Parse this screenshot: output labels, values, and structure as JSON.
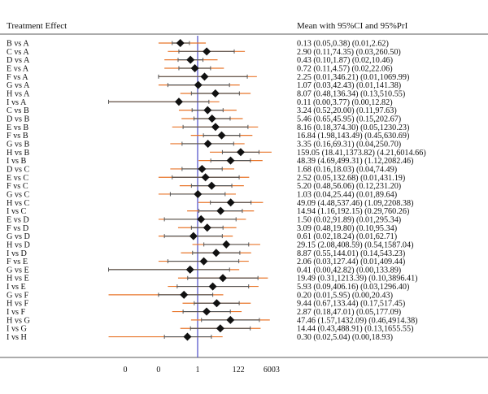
{
  "header": {
    "left": "Treatment Effect",
    "right": "Mean with 95%CI and 95%PrI"
  },
  "chart_data": {
    "type": "forest",
    "title": "",
    "xlabel": "",
    "ylabel": "",
    "x_scale": "log",
    "reference_line": 1,
    "x_tick_labels": [
      "0",
      "0",
      "1",
      "122",
      "6003"
    ],
    "x_ticks": [
      0.0002,
      0.01,
      1,
      122,
      6003
    ],
    "xlim": [
      2e-05,
      150000
    ],
    "colors": {
      "prediction_interval": "#e8762b",
      "confidence_interval": "#555555",
      "marker": "#111111",
      "reference_line": "#4a4ac8"
    },
    "rows": [
      {
        "label": "B vs A",
        "mean": 0.13,
        "ci": [
          0.05,
          0.38
        ],
        "pri": [
          0.01,
          2.62
        ],
        "text": "0.13 (0.05,0.38) (0.01,2.62)"
      },
      {
        "label": "C vs A",
        "mean": 2.9,
        "ci": [
          0.11,
          74.35
        ],
        "pri": [
          0.03,
          260.5
        ],
        "text": "2.90 (0.11,74.35) (0.03,260.50)"
      },
      {
        "label": "D vs A",
        "mean": 0.43,
        "ci": [
          0.1,
          1.87
        ],
        "pri": [
          0.02,
          10.46
        ],
        "text": "0.43 (0.10,1.87) (0.02,10.46)"
      },
      {
        "label": "E vs A",
        "mean": 0.72,
        "ci": [
          0.11,
          4.57
        ],
        "pri": [
          0.02,
          22.06
        ],
        "text": "0.72 (0.11,4.57) (0.02,22.06)"
      },
      {
        "label": "F vs A",
        "mean": 2.25,
        "ci": [
          0.01,
          346.21
        ],
        "pri": [
          0.01,
          1069.99
        ],
        "text": "2.25 (0.01,346.21) (0.01,1069.99)"
      },
      {
        "label": "G vs A",
        "mean": 1.07,
        "ci": [
          0.03,
          42.43
        ],
        "pri": [
          0.01,
          141.38
        ],
        "text": "1.07 (0.03,42.43) (0.01,141.38)"
      },
      {
        "label": "H vs A",
        "mean": 8.07,
        "ci": [
          0.48,
          136.34
        ],
        "pri": [
          0.13,
          510.55
        ],
        "text": "8.07 (0.48,136.34) (0.13,510.55)"
      },
      {
        "label": "I vs A",
        "mean": 0.11,
        "ci": [
          0.0,
          3.77
        ],
        "pri": [
          0.0,
          12.82
        ],
        "text": "0.11 (0.00,3.77) (0.00,12.82)"
      },
      {
        "label": "C vs B",
        "mean": 3.24,
        "ci": [
          0.52,
          20.0
        ],
        "pri": [
          0.11,
          97.63
        ],
        "text": "3.24 (0.52,20.00) (0.11,97.63)"
      },
      {
        "label": "D vs B",
        "mean": 5.46,
        "ci": [
          0.65,
          45.95
        ],
        "pri": [
          0.15,
          202.67
        ],
        "text": "5.46 (0.65,45.95) (0.15,202.67)"
      },
      {
        "label": "E vs B",
        "mean": 8.16,
        "ci": [
          0.18,
          374.3
        ],
        "pri": [
          0.05,
          1230.23
        ],
        "text": "8.16 (0.18,374.30) (0.05,1230.23)"
      },
      {
        "label": "F vs B",
        "mean": 16.84,
        "ci": [
          1.98,
          143.49
        ],
        "pri": [
          0.45,
          630.69
        ],
        "text": "16.84 (1.98,143.49) (0.45,630.69)"
      },
      {
        "label": "G vs B",
        "mean": 3.35,
        "ci": [
          0.16,
          69.31
        ],
        "pri": [
          0.04,
          250.7
        ],
        "text": "3.35 (0.16,69.31) (0.04,250.70)"
      },
      {
        "label": "H vs B",
        "mean": 159.05,
        "ci": [
          18.41,
          1373.82
        ],
        "pri": [
          4.21,
          6014.66
        ],
        "text": "159.05 (18.41,1373.82) (4.21,6014.66)"
      },
      {
        "label": "I vs B",
        "mean": 48.39,
        "ci": [
          4.69,
          499.31
        ],
        "pri": [
          1.12,
          2082.46
        ],
        "text": "48.39 (4.69,499.31) (1.12,2082.46)"
      },
      {
        "label": "D vs C",
        "mean": 1.68,
        "ci": [
          0.16,
          18.03
        ],
        "pri": [
          0.04,
          74.49
        ],
        "text": "1.68 (0.16,18.03) (0.04,74.49)"
      },
      {
        "label": "E vs C",
        "mean": 2.52,
        "ci": [
          0.05,
          132.68
        ],
        "pri": [
          0.01,
          431.19
        ],
        "text": "2.52 (0.05,132.68) (0.01,431.19)"
      },
      {
        "label": "F vs C",
        "mean": 5.2,
        "ci": [
          0.48,
          56.06
        ],
        "pri": [
          0.12,
          231.2
        ],
        "text": "5.20 (0.48,56.06) (0.12,231.20)"
      },
      {
        "label": "G vs C",
        "mean": 1.03,
        "ci": [
          0.04,
          25.44
        ],
        "pri": [
          0.01,
          89.64
        ],
        "text": "1.03 (0.04,25.44) (0.01,89.64)"
      },
      {
        "label": "H vs C",
        "mean": 49.09,
        "ci": [
          4.48,
          537.46
        ],
        "pri": [
          1.09,
          2208.38
        ],
        "text": "49.09 (4.48,537.46) (1.09,2208.38)"
      },
      {
        "label": "I vs C",
        "mean": 14.94,
        "ci": [
          1.16,
          192.15
        ],
        "pri": [
          0.29,
          760.26
        ],
        "text": "14.94 (1.16,192.15) (0.29,760.26)"
      },
      {
        "label": "E vs D",
        "mean": 1.5,
        "ci": [
          0.02,
          91.89
        ],
        "pri": [
          0.01,
          295.34
        ],
        "text": "1.50 (0.02,91.89) (0.01,295.34)"
      },
      {
        "label": "F vs D",
        "mean": 3.09,
        "ci": [
          0.48,
          19.8
        ],
        "pri": [
          0.1,
          95.34
        ],
        "text": "3.09 (0.48,19.80) (0.10,95.34)"
      },
      {
        "label": "G vs D",
        "mean": 0.61,
        "ci": [
          0.02,
          18.24
        ],
        "pri": [
          0.01,
          62.71
        ],
        "text": "0.61 (0.02,18.24) (0.01,62.71)"
      },
      {
        "label": "H vs D",
        "mean": 29.15,
        "ci": [
          2.08,
          408.59
        ],
        "pri": [
          0.54,
          1587.04
        ],
        "text": "29.15 (2.08,408.59) (0.54,1587.04)"
      },
      {
        "label": "I vs D",
        "mean": 8.87,
        "ci": [
          0.55,
          144.01
        ],
        "pri": [
          0.14,
          543.23
        ],
        "text": "8.87 (0.55,144.01) (0.14,543.23)"
      },
      {
        "label": "F vs E",
        "mean": 2.06,
        "ci": [
          0.03,
          127.44
        ],
        "pri": [
          0.01,
          409.44
        ],
        "text": "2.06 (0.03,127.44) (0.01,409.44)"
      },
      {
        "label": "G vs E",
        "mean": 0.41,
        "ci": [
          0.0,
          42.82
        ],
        "pri": [
          0.0,
          133.89
        ],
        "text": "0.41 (0.00,42.82) (0.00,133.89)"
      },
      {
        "label": "H vs E",
        "mean": 19.49,
        "ci": [
          0.31,
          1213.39
        ],
        "pri": [
          0.1,
          3896.41
        ],
        "text": "19.49 (0.31,1213.39) (0.10,3896.41)"
      },
      {
        "label": "I vs E",
        "mean": 5.93,
        "ci": [
          0.09,
          406.16
        ],
        "pri": [
          0.03,
          1296.4
        ],
        "text": "5.93 (0.09,406.16) (0.03,1296.40)"
      },
      {
        "label": "G vs F",
        "mean": 0.2,
        "ci": [
          0.01,
          5.95
        ],
        "pri": [
          0.0,
          20.43
        ],
        "text": "0.20 (0.01,5.95) (0.00,20.43)"
      },
      {
        "label": "H vs F",
        "mean": 9.44,
        "ci": [
          0.67,
          133.44
        ],
        "pri": [
          0.17,
          517.45
        ],
        "text": "9.44 (0.67,133.44) (0.17,517.45)"
      },
      {
        "label": "I vs F",
        "mean": 2.87,
        "ci": [
          0.18,
          47.01
        ],
        "pri": [
          0.05,
          177.09
        ],
        "text": "2.87 (0.18,47.01) (0.05,177.09)"
      },
      {
        "label": "H vs G",
        "mean": 47.46,
        "ci": [
          1.57,
          1432.09
        ],
        "pri": [
          0.46,
          4914.38
        ],
        "text": "47.46 (1.57,1432.09) (0.46,4914.38)"
      },
      {
        "label": "I vs G",
        "mean": 14.44,
        "ci": [
          0.43,
          488.91
        ],
        "pri": [
          0.13,
          1655.55
        ],
        "text": "14.44 (0.43,488.91) (0.13,1655.55)"
      },
      {
        "label": "I vs H",
        "mean": 0.3,
        "ci": [
          0.02,
          5.04
        ],
        "pri": [
          0.0,
          18.93
        ],
        "text": "0.30 (0.02,5.04) (0.00,18.93)"
      }
    ]
  }
}
